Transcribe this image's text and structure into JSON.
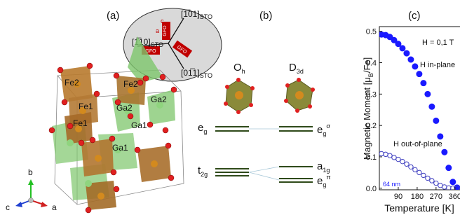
{
  "panels": {
    "a": "(a)",
    "b": "(b)",
    "c": "(c)"
  },
  "structure": {
    "directions": [
      {
        "text": "[1̅01]",
        "sub": "STO"
      },
      {
        "text": "[1̅10]",
        "sub": "STO"
      },
      {
        "text": "[01̅1]",
        "sub": "STO"
      }
    ],
    "film_labels": [
      "GFO",
      "GFO",
      "GFO"
    ],
    "film_axes": [
      "a",
      "c"
    ],
    "atoms": [
      "Fe2",
      "Fe2",
      "Fe1",
      "Fe1",
      "Ga2",
      "Ga2",
      "Ga1",
      "Ga1"
    ],
    "axes": [
      "b",
      "c",
      "a"
    ]
  },
  "levels": {
    "left_symmetry": {
      "base": "O",
      "sub": "h"
    },
    "right_symmetry": {
      "base": "D",
      "sub": "3d"
    },
    "left": [
      {
        "base": "e",
        "sub": "g"
      },
      {
        "base": "t",
        "sub": "2g"
      }
    ],
    "right": [
      {
        "base": "e",
        "sub": "g",
        "sup": "σ"
      },
      {
        "base": "a",
        "sub": "1g"
      },
      {
        "base": "e",
        "sub": "g",
        "sup": "π"
      }
    ]
  },
  "chart_data": {
    "type": "scatter",
    "ylabel": [
      "Magnetic Moment [μ",
      "B",
      "/Fe]"
    ],
    "xlabel": "Temperature [K]",
    "annotations": [
      "H = 0,1 T",
      "64 nm"
    ],
    "x": [
      10,
      30,
      50,
      70,
      90,
      110,
      130,
      150,
      170,
      190,
      210,
      230,
      250,
      270,
      290,
      310,
      330,
      350,
      370
    ],
    "series": [
      {
        "name": "H in-plane",
        "color": "#1a1aff",
        "filled": true,
        "values": [
          0.49,
          0.488,
          0.482,
          0.472,
          0.46,
          0.446,
          0.43,
          0.41,
          0.388,
          0.364,
          0.335,
          0.3,
          0.26,
          0.215,
          0.165,
          0.115,
          0.065,
          0.02,
          0.002
        ]
      },
      {
        "name": "H out-of-plane",
        "color": "#4040c0",
        "filled": false,
        "values": [
          0.11,
          0.108,
          0.104,
          0.098,
          0.092,
          0.085,
          0.077,
          0.068,
          0.059,
          0.05,
          0.041,
          0.032,
          0.024,
          0.016,
          0.009,
          0.004,
          0.001,
          0,
          0
        ]
      }
    ],
    "xlim": [
      0,
      384
    ],
    "ylim": [
      -0.005,
      0.515
    ],
    "xticks": [
      90,
      180,
      270,
      360
    ],
    "yticks": [
      {
        "value": 0,
        "label": "0.0"
      },
      0.1,
      0.2,
      0.3,
      0.4,
      0.5
    ]
  }
}
